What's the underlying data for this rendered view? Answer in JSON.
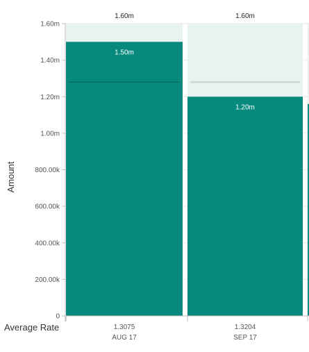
{
  "chart_data": {
    "type": "bar",
    "categories": [
      "AUG 17",
      "SEP 17",
      ""
    ],
    "avg_rate_label": "Average Rate",
    "avg_rates": [
      "1.3075",
      "1.3204",
      ""
    ],
    "target_values": [
      1600000,
      1600000,
      1600000
    ],
    "target_labels": [
      "1.60m",
      "1.60m",
      ""
    ],
    "values": [
      1500000,
      1200000,
      1160000
    ],
    "value_labels": [
      "1.50m",
      "1.20m",
      ""
    ],
    "reference_values": [
      1280000,
      1280000,
      null
    ],
    "ylabel": "Amount",
    "ylim": [
      0,
      1600000
    ],
    "yticks": [
      0,
      200000,
      400000,
      600000,
      800000,
      1000000,
      1200000,
      1400000,
      1600000
    ],
    "ytick_labels": [
      "0",
      "200.00k",
      "400.00k",
      "600.00k",
      "800.00k",
      "1.00m",
      "1.20m",
      "1.40m",
      "1.60m"
    ],
    "grid": true,
    "legend": "none"
  },
  "colors": {
    "bar": "#078a7d",
    "target_bg": "#e8f2f1",
    "reference_line_on_bar": "#056b60",
    "reference_line_on_bg": "#cfd6d5",
    "grid": "#e6e6e6",
    "axis": "#bdbdbd",
    "text": "#555555",
    "label_dark": "#222222",
    "label_light": "#ffffff"
  }
}
